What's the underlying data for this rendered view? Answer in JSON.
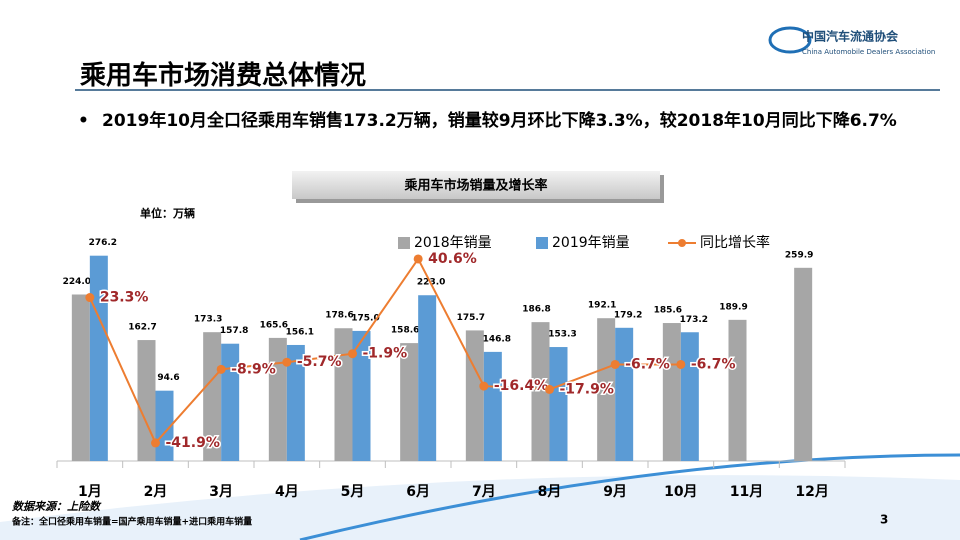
{
  "header": {
    "title": "乘用车市场消费总体情况",
    "logo_cn": "中国汽车流通协会",
    "logo_en": "China Automobile Dealers Association"
  },
  "bullet": "2019年10月全口径乘用车销售173.2万辆，销量较9月环比下降3.3%，较2018年10月同比下降6.7%",
  "chart_data": {
    "type": "bar",
    "title": "乘用车市场销量及增长率",
    "unit": "单位：万辆",
    "categories": [
      "1月",
      "2月",
      "3月",
      "4月",
      "5月",
      "6月",
      "7月",
      "8月",
      "9月",
      "10月",
      "11月",
      "12月"
    ],
    "series": [
      {
        "name": "2018年销量",
        "type": "bar",
        "color": "#a6a6a6",
        "values": [
          224.0,
          162.7,
          173.3,
          165.6,
          178.6,
          158.6,
          175.7,
          186.8,
          192.1,
          185.6,
          189.9,
          259.9
        ],
        "value_labels": [
          "224.0",
          "162.7",
          "173.3",
          "165.6",
          "178.6",
          "158.6",
          "175.7",
          "186.8",
          "192.1",
          "185.6",
          "189.9",
          "259.9"
        ]
      },
      {
        "name": "2019年销量",
        "type": "bar",
        "color": "#5b9bd5",
        "values": [
          276.2,
          94.6,
          157.8,
          156.1,
          175.0,
          223.0,
          146.8,
          153.3,
          179.2,
          173.2,
          null,
          null
        ],
        "value_labels": [
          "276.2",
          "94.6",
          "157.8",
          "156.1",
          "175.0",
          "223.0",
          "146.8",
          "153.3",
          "179.2",
          "173.2",
          null,
          null
        ]
      },
      {
        "name": "同比增长率",
        "type": "line",
        "axis": "y2",
        "color": "#ed7d31",
        "values": [
          23.3,
          -41.9,
          -8.9,
          -5.7,
          -1.9,
          40.6,
          -16.4,
          -17.9,
          -6.7,
          -6.7,
          null,
          null
        ],
        "value_labels": [
          "23.3%",
          "-41.9%",
          "-8.9%",
          "-5.7%",
          "-1.9%",
          "40.6%",
          "-16.4%",
          "-17.9%",
          "-6.7%",
          "-6.7%",
          null,
          null
        ]
      }
    ],
    "ylim": [
      0,
      300
    ],
    "y2lim": [
      -50,
      50
    ]
  },
  "footer": {
    "source": "数据来源：上险数",
    "note": "备注：全口径乘用车销量=国产乘用车销量+进口乘用车销量",
    "page": "3"
  }
}
